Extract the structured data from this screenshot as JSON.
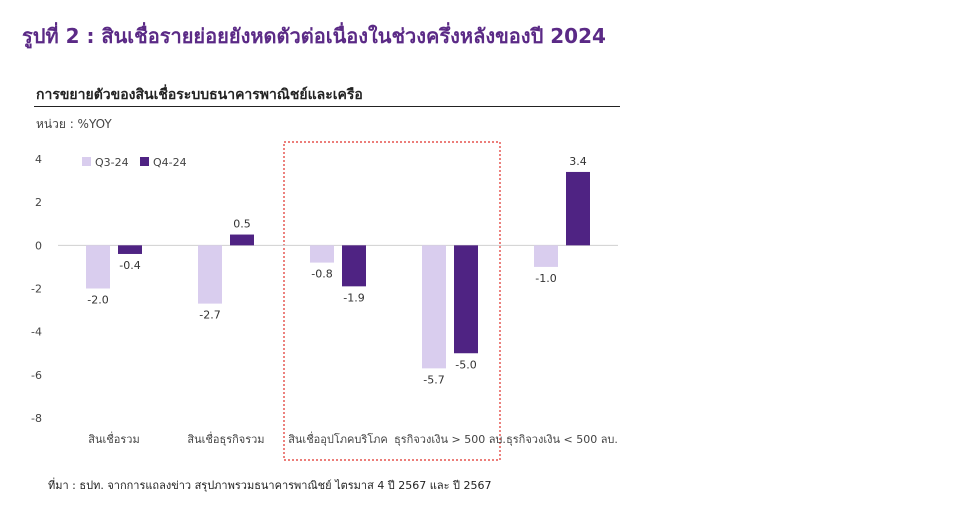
{
  "figure_title": "รูปที่ 2 : สินเชื่อรายย่อยยังหดตัวต่อเนื่องในช่วงครึ่งหลังของปี 2024",
  "chart_title": "การขยายตัวของสินเชื่อระบบธนาคารพาณิชย์และเครือ",
  "unit_label": "หน่วย : %YOY",
  "source": "ที่มา : ธปท. จากการแถลงข่าว สรุปภาพรวมธนาคารพาณิชย์ ไตรมาส 4 ปี 2567 และ ปี 2567",
  "chart_data": {
    "type": "bar",
    "categories": [
      "สินเชื่อรวม",
      "สินเชื่อธุรกิจรวม",
      "สินเชื่ออุปโภคบริโภค",
      "ธุรกิจวงเงิน > 500 ลบ.",
      "ธุรกิจวงเงิน < 500 ลบ."
    ],
    "series": [
      {
        "name": "Q3-24",
        "values": [
          -2.0,
          -2.7,
          -0.8,
          -5.7,
          -1.0
        ],
        "color": "#d9cdee"
      },
      {
        "name": "Q4-24",
        "values": [
          -0.4,
          0.5,
          -1.9,
          -5.0,
          3.4
        ],
        "color": "#4f2383"
      }
    ],
    "data_labels": [
      [
        "-2.0",
        "-2.7",
        "-0.8",
        "-5.7",
        "-1.0"
      ],
      [
        "-0.4",
        "0.5",
        "-1.9",
        "-5.0",
        "3.4"
      ]
    ],
    "ylim": [
      -8,
      4
    ],
    "yticks": [
      4,
      2,
      0,
      -2,
      -4,
      -6,
      -8
    ],
    "ytick_labels": [
      "4",
      "2",
      "0",
      "-2",
      "-4",
      "-6",
      "-8"
    ],
    "xlabel": "",
    "ylabel": "",
    "legend": "top-left",
    "grid": false,
    "highlight": {
      "categories": [
        2,
        3
      ],
      "style": "dotted",
      "color": "#e0302a"
    }
  }
}
